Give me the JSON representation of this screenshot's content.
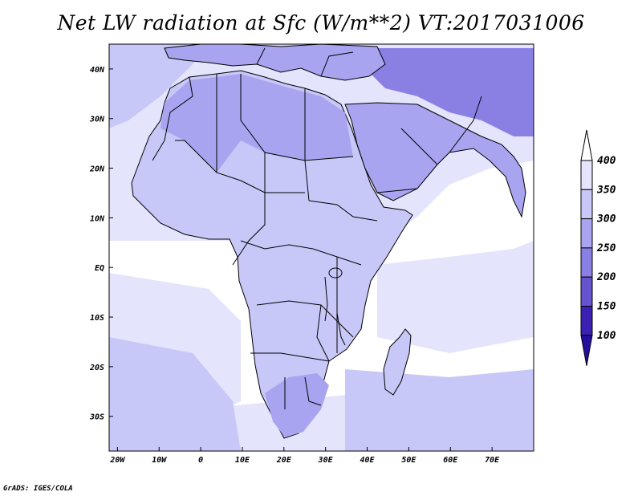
{
  "title": "Net LW radiation at Sfc (W/m**2) VT:2017031006",
  "credit": "GrADS: IGES/COLA",
  "map": {
    "lon_range": [
      -22,
      80
    ],
    "lat_range": [
      -37,
      45
    ],
    "lon_ticks": [
      {
        "value": -20,
        "label": "20W"
      },
      {
        "value": -10,
        "label": "10W"
      },
      {
        "value": 0,
        "label": "0"
      },
      {
        "value": 10,
        "label": "10E"
      },
      {
        "value": 20,
        "label": "20E"
      },
      {
        "value": 30,
        "label": "30E"
      },
      {
        "value": 40,
        "label": "40E"
      },
      {
        "value": 50,
        "label": "50E"
      },
      {
        "value": 60,
        "label": "60E"
      },
      {
        "value": 70,
        "label": "70E"
      }
    ],
    "lat_ticks": [
      {
        "value": 40,
        "label": "40N"
      },
      {
        "value": 30,
        "label": "30N"
      },
      {
        "value": 20,
        "label": "20N"
      },
      {
        "value": 10,
        "label": "10N"
      },
      {
        "value": 0,
        "label": "EQ"
      },
      {
        "value": -10,
        "label": "10S"
      },
      {
        "value": -20,
        "label": "20S"
      },
      {
        "value": -30,
        "label": "30S"
      }
    ]
  },
  "colorbar": {
    "labels": [
      "400",
      "350",
      "300",
      "250",
      "200",
      "150",
      "100"
    ],
    "colors": [
      "#ffffff",
      "#e4e4fc",
      "#c8c8f8",
      "#a8a4f0",
      "#8a80e4",
      "#6454d0",
      "#3c20b4",
      "#2410a0"
    ]
  }
}
